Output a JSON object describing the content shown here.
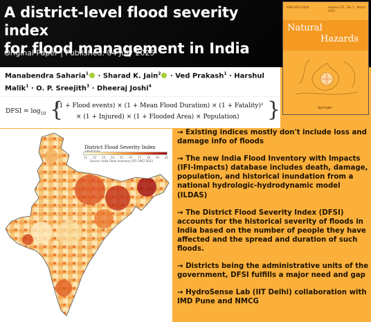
{
  "title_line1": "A district-level flood severity index",
  "title_line2": "for flood management in India",
  "paper_line": "Original Paper | Published: 04 July 2025",
  "cover": {
    "journal_part1": "Natural",
    "journal_part2": "Hazards",
    "publisher": "Springer",
    "color_bg": "#fbb03b",
    "color_band": "#f49a22"
  },
  "authors": [
    {
      "name": "Manabendra Saharia",
      "sup": "1",
      "orcid": true
    },
    {
      "name": "Sharad K. Jain",
      "sup": "2",
      "orcid": true
    },
    {
      "name": "Ved Prakash",
      "sup": "1",
      "orcid": false
    },
    {
      "name": "Harshul Malik",
      "sup": "1",
      "orcid": false
    },
    {
      "name": "O. P. Sreejith",
      "sup": "3",
      "orcid": false
    },
    {
      "name": "Dheeraj Joshi",
      "sup": "4",
      "orcid": false
    }
  ],
  "formula": {
    "lhs": "DFSI = log",
    "lhs_sub": "10",
    "line1": "(1 + Flood events) × (1 + Mean Flood Duration) × (1 + Fatality)²",
    "line2": "× (1 + Injured) × (1 + Flooded Area) × Population)"
  },
  "map": {
    "title": "District Flood Severity Index (DFSI)",
    "ticks": [
      "11",
      "12",
      "13",
      "14",
      "15",
      "16",
      "17",
      "18",
      "19",
      "20"
    ],
    "source": "Source: India Flood Inventory (IFI) 1967-2023"
  },
  "bullets": [
    "→ Existing indices mostly don't include loss and damage info of floods",
    "→ The new India Flood Inventory with Impacts (IFI-Impacts) database includes death, damage, population, and historical inundation from a national hydrologic-hydrodynamic model (ILDAS)",
    "→ The District Flood Severity Index (DFSI) accounts for the historical severity of floods in India based on the number of people they have affected and the spread and duration of such floods.",
    "→ Districts being the administrative units of the government, DFSI fulfills a major need and gap",
    "→ HydroSense Lab (IIT Delhi) collaboration with IMD Pune and NMCG"
  ],
  "colors": {
    "accent": "#fbb03b",
    "header_bg": "#000000",
    "orcid": "#a6ce39"
  }
}
